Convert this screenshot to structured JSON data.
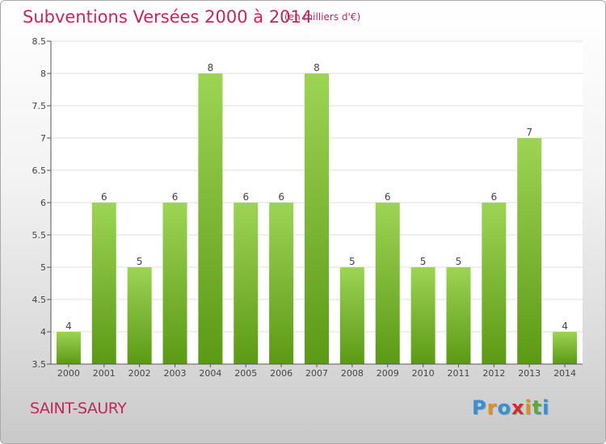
{
  "title": "Subventions Versées 2000 à 2014",
  "subtitle": "(en milliers d'€)",
  "commune": "SAINT-SAURY",
  "brand": {
    "letters": [
      "P",
      "r",
      "o",
      "x",
      "i",
      "t",
      "i"
    ],
    "colors": [
      "#3b8fd1",
      "#e98a1d",
      "#3b8fd1",
      "#d9272e",
      "#e98a1d",
      "#5aab2f",
      "#3b8fd1"
    ]
  },
  "colors": {
    "title": "#c0285c",
    "bar_top": "#9dd454",
    "bar_bottom": "#5b9a15",
    "label": "#444444"
  },
  "chart_data": {
    "type": "bar",
    "title": "Subventions Versées 2000 à 2014",
    "subtitle": "(en milliers d'€)",
    "categories": [
      "2000",
      "2001",
      "2002",
      "2003",
      "2004",
      "2005",
      "2006",
      "2007",
      "2008",
      "2009",
      "2010",
      "2011",
      "2012",
      "2013",
      "2014"
    ],
    "values": [
      4,
      6,
      5,
      6,
      8,
      6,
      6,
      8,
      5,
      6,
      5,
      5,
      6,
      7,
      4
    ],
    "ylim": [
      3.5,
      8.5
    ],
    "yticks": [
      "3.5",
      "4",
      "4.5",
      "5",
      "5.5",
      "6",
      "6.5",
      "7",
      "7.5",
      "8",
      "8.5"
    ],
    "grid": true
  }
}
